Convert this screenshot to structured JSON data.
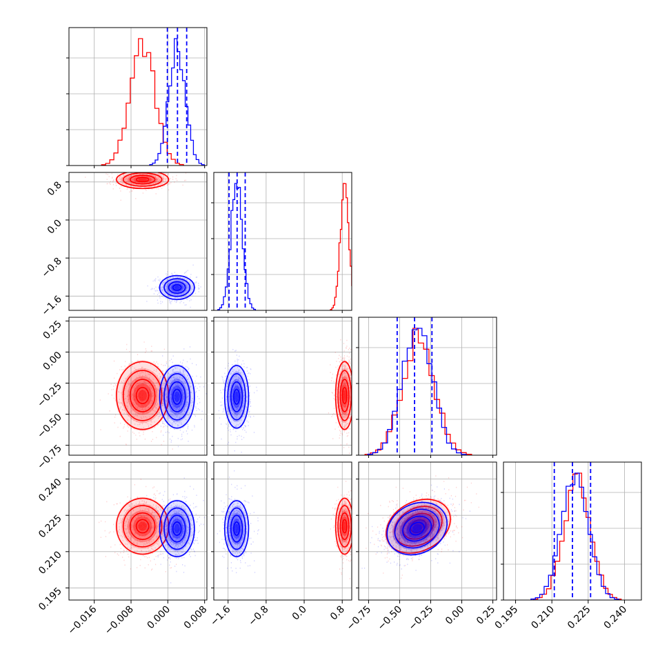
{
  "colors": {
    "red": "#ff0000",
    "blue": "#0000ff",
    "grid": "#b0b0b0"
  },
  "chart_data": {
    "type": "corner",
    "grid": true,
    "series": [
      {
        "color": "#ff0000",
        "means": [
          -0.0055,
          0.85,
          -0.35,
          0.2205
        ],
        "sds": [
          0.0027,
          0.09,
          0.13,
          0.0055
        ],
        "corr_2_3": 0.35
      },
      {
        "color": "#0000ff",
        "means": [
          0.002,
          -1.42,
          -0.36,
          0.2195
        ],
        "sds": [
          0.0018,
          0.12,
          0.12,
          0.0055
        ],
        "corr_2_3": 0.35
      }
    ],
    "quantile_lines": [
      [
        -0.0001,
        0.0021,
        0.0041
      ],
      [
        -1.58,
        -1.41,
        -1.24
      ],
      [
        -0.52,
        -0.38,
        -0.24
      ],
      [
        0.211,
        0.2185,
        0.226
      ]
    ],
    "axes": [
      {
        "range": [
          -0.0215,
          0.0085
        ],
        "ticks": [
          "−0.016",
          "−0.008",
          "0.000",
          "0.008"
        ],
        "tick_values": [
          -0.016,
          -0.008,
          0.0,
          0.008
        ]
      },
      {
        "range": [
          -1.9,
          1.0
        ],
        "ticks": [
          "−1.6",
          "−0.8",
          "0.0",
          "0.8"
        ],
        "tick_values": [
          -1.6,
          -0.8,
          0.0,
          0.8
        ]
      },
      {
        "range": [
          -0.83,
          0.28
        ],
        "ticks": [
          "−0.75",
          "−0.50",
          "−0.25",
          "0.00",
          "0.25"
        ],
        "tick_values": [
          -0.75,
          -0.5,
          -0.25,
          0.0,
          0.25
        ]
      },
      {
        "range": [
          0.19,
          0.247
        ],
        "ticks": [
          "0.195",
          "0.210",
          "0.225",
          "0.240"
        ],
        "tick_values": [
          0.195,
          0.21,
          0.225,
          0.24
        ]
      }
    ]
  }
}
